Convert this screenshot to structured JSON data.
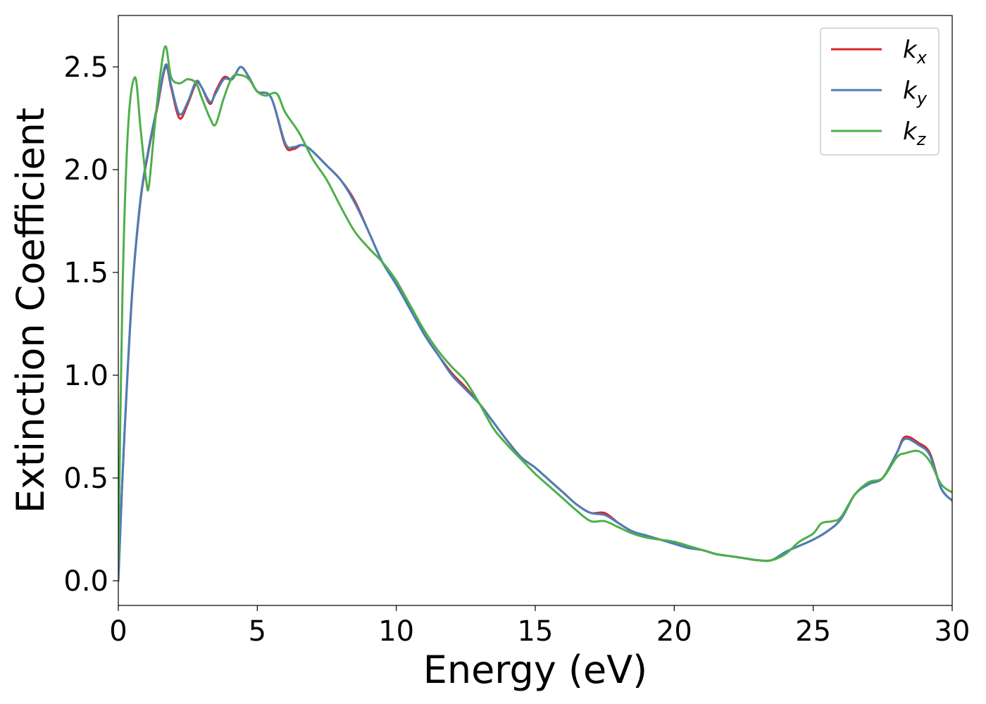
{
  "chart_data": {
    "type": "line",
    "xlabel": "Energy (eV)",
    "ylabel": "Extinction Coefficient",
    "xlim": [
      0,
      30
    ],
    "ylim": [
      -0.12,
      2.75
    ],
    "xticks": [
      0,
      5,
      10,
      15,
      20,
      25,
      30
    ],
    "xtick_labels": [
      "0",
      "5",
      "10",
      "15",
      "20",
      "25",
      "30"
    ],
    "yticks": [
      0.0,
      0.5,
      1.0,
      1.5,
      2.0,
      2.5
    ],
    "ytick_labels": [
      "0.0",
      "0.5",
      "1.0",
      "1.5",
      "2.0",
      "2.5"
    ],
    "grid": false,
    "legend_position": "top-right",
    "series": [
      {
        "name": "k_x",
        "label_main": "k",
        "label_sub": "x",
        "color": "#d62728",
        "x": [
          0,
          0.2,
          0.5,
          0.8,
          1.1,
          1.4,
          1.7,
          1.9,
          2.2,
          2.5,
          2.8,
          3.0,
          3.3,
          3.5,
          3.8,
          4.1,
          4.4,
          4.7,
          5.0,
          5.5,
          6.0,
          6.3,
          6.6,
          6.9,
          7.5,
          8.0,
          8.5,
          9.0,
          9.5,
          10.0,
          10.5,
          11.0,
          11.5,
          12.0,
          12.5,
          13.0,
          13.5,
          14.0,
          14.5,
          15.0,
          15.5,
          16.0,
          16.5,
          17.0,
          17.5,
          18.0,
          18.5,
          19.0,
          19.5,
          20.0,
          20.5,
          21.0,
          21.5,
          22.0,
          22.5,
          23.0,
          23.5,
          24.0,
          24.5,
          25.0,
          25.5,
          26.0,
          26.5,
          27.0,
          27.5,
          28.0,
          28.3,
          28.8,
          29.2,
          29.6,
          30.0
        ],
        "y": [
          0.0,
          0.65,
          1.4,
          1.85,
          2.1,
          2.3,
          2.5,
          2.4,
          2.25,
          2.32,
          2.42,
          2.4,
          2.32,
          2.38,
          2.45,
          2.44,
          2.5,
          2.45,
          2.38,
          2.35,
          2.12,
          2.1,
          2.12,
          2.1,
          2.02,
          1.95,
          1.85,
          1.7,
          1.55,
          1.45,
          1.33,
          1.2,
          1.1,
          1.01,
          0.94,
          0.86,
          0.77,
          0.68,
          0.6,
          0.55,
          0.49,
          0.43,
          0.37,
          0.33,
          0.33,
          0.28,
          0.24,
          0.22,
          0.2,
          0.18,
          0.16,
          0.15,
          0.13,
          0.12,
          0.11,
          0.1,
          0.1,
          0.14,
          0.17,
          0.2,
          0.24,
          0.3,
          0.42,
          0.47,
          0.5,
          0.62,
          0.7,
          0.67,
          0.62,
          0.45,
          0.39
        ]
      },
      {
        "name": "k_y",
        "label_main": "k",
        "label_sub": "y",
        "color": "#4a7fb8",
        "x": [
          0,
          0.2,
          0.5,
          0.8,
          1.1,
          1.4,
          1.7,
          1.9,
          2.2,
          2.5,
          2.8,
          3.0,
          3.3,
          3.5,
          3.8,
          4.1,
          4.4,
          4.7,
          5.0,
          5.5,
          6.0,
          6.3,
          6.6,
          6.9,
          7.5,
          8.0,
          8.5,
          9.0,
          9.5,
          10.0,
          10.5,
          11.0,
          11.5,
          12.0,
          12.5,
          13.0,
          13.5,
          14.0,
          14.5,
          15.0,
          15.5,
          16.0,
          16.5,
          17.0,
          17.5,
          18.0,
          18.5,
          19.0,
          19.5,
          20.0,
          20.5,
          21.0,
          21.5,
          22.0,
          22.5,
          23.0,
          23.5,
          24.0,
          24.5,
          25.0,
          25.5,
          26.0,
          26.5,
          27.0,
          27.5,
          28.0,
          28.3,
          28.8,
          29.2,
          29.6,
          30.0
        ],
        "y": [
          0.0,
          0.66,
          1.41,
          1.86,
          2.11,
          2.31,
          2.51,
          2.41,
          2.27,
          2.33,
          2.43,
          2.4,
          2.33,
          2.37,
          2.44,
          2.44,
          2.5,
          2.45,
          2.38,
          2.35,
          2.13,
          2.11,
          2.12,
          2.1,
          2.02,
          1.95,
          1.84,
          1.7,
          1.55,
          1.44,
          1.32,
          1.2,
          1.1,
          1.0,
          0.93,
          0.86,
          0.77,
          0.68,
          0.6,
          0.55,
          0.49,
          0.43,
          0.37,
          0.33,
          0.32,
          0.28,
          0.24,
          0.22,
          0.2,
          0.18,
          0.16,
          0.15,
          0.13,
          0.12,
          0.11,
          0.1,
          0.1,
          0.14,
          0.17,
          0.2,
          0.24,
          0.3,
          0.42,
          0.47,
          0.5,
          0.62,
          0.69,
          0.66,
          0.61,
          0.45,
          0.39
        ]
      },
      {
        "name": "k_z",
        "label_main": "k",
        "label_sub": "z",
        "color": "#4daf4a",
        "x": [
          0,
          0.15,
          0.35,
          0.6,
          0.8,
          1.0,
          1.1,
          1.3,
          1.5,
          1.7,
          1.9,
          2.2,
          2.5,
          2.8,
          3.0,
          3.3,
          3.5,
          3.8,
          4.1,
          4.4,
          4.7,
          5.0,
          5.3,
          5.7,
          6.0,
          6.5,
          7.0,
          7.5,
          8.0,
          8.5,
          9.0,
          9.5,
          10.0,
          10.5,
          11.0,
          11.5,
          12.0,
          12.5,
          13.0,
          13.5,
          14.0,
          14.5,
          15.0,
          15.5,
          16.0,
          16.5,
          17.0,
          17.5,
          18.0,
          18.5,
          19.0,
          19.5,
          20.0,
          20.5,
          21.0,
          21.5,
          22.0,
          22.5,
          23.0,
          23.5,
          24.0,
          24.5,
          25.0,
          25.3,
          25.7,
          26.0,
          26.5,
          27.0,
          27.5,
          28.0,
          28.3,
          28.8,
          29.2,
          29.6,
          30.0
        ],
        "y": [
          0.1,
          1.4,
          2.2,
          2.45,
          2.2,
          1.95,
          1.92,
          2.2,
          2.45,
          2.6,
          2.45,
          2.42,
          2.44,
          2.42,
          2.35,
          2.25,
          2.22,
          2.35,
          2.45,
          2.46,
          2.44,
          2.38,
          2.36,
          2.37,
          2.28,
          2.18,
          2.05,
          1.95,
          1.82,
          1.7,
          1.62,
          1.55,
          1.46,
          1.34,
          1.22,
          1.12,
          1.04,
          0.97,
          0.86,
          0.74,
          0.66,
          0.59,
          0.52,
          0.46,
          0.4,
          0.34,
          0.29,
          0.29,
          0.26,
          0.23,
          0.21,
          0.2,
          0.19,
          0.17,
          0.15,
          0.13,
          0.12,
          0.11,
          0.1,
          0.1,
          0.13,
          0.19,
          0.23,
          0.28,
          0.29,
          0.31,
          0.42,
          0.48,
          0.5,
          0.6,
          0.62,
          0.63,
          0.58,
          0.47,
          0.43
        ]
      }
    ]
  }
}
